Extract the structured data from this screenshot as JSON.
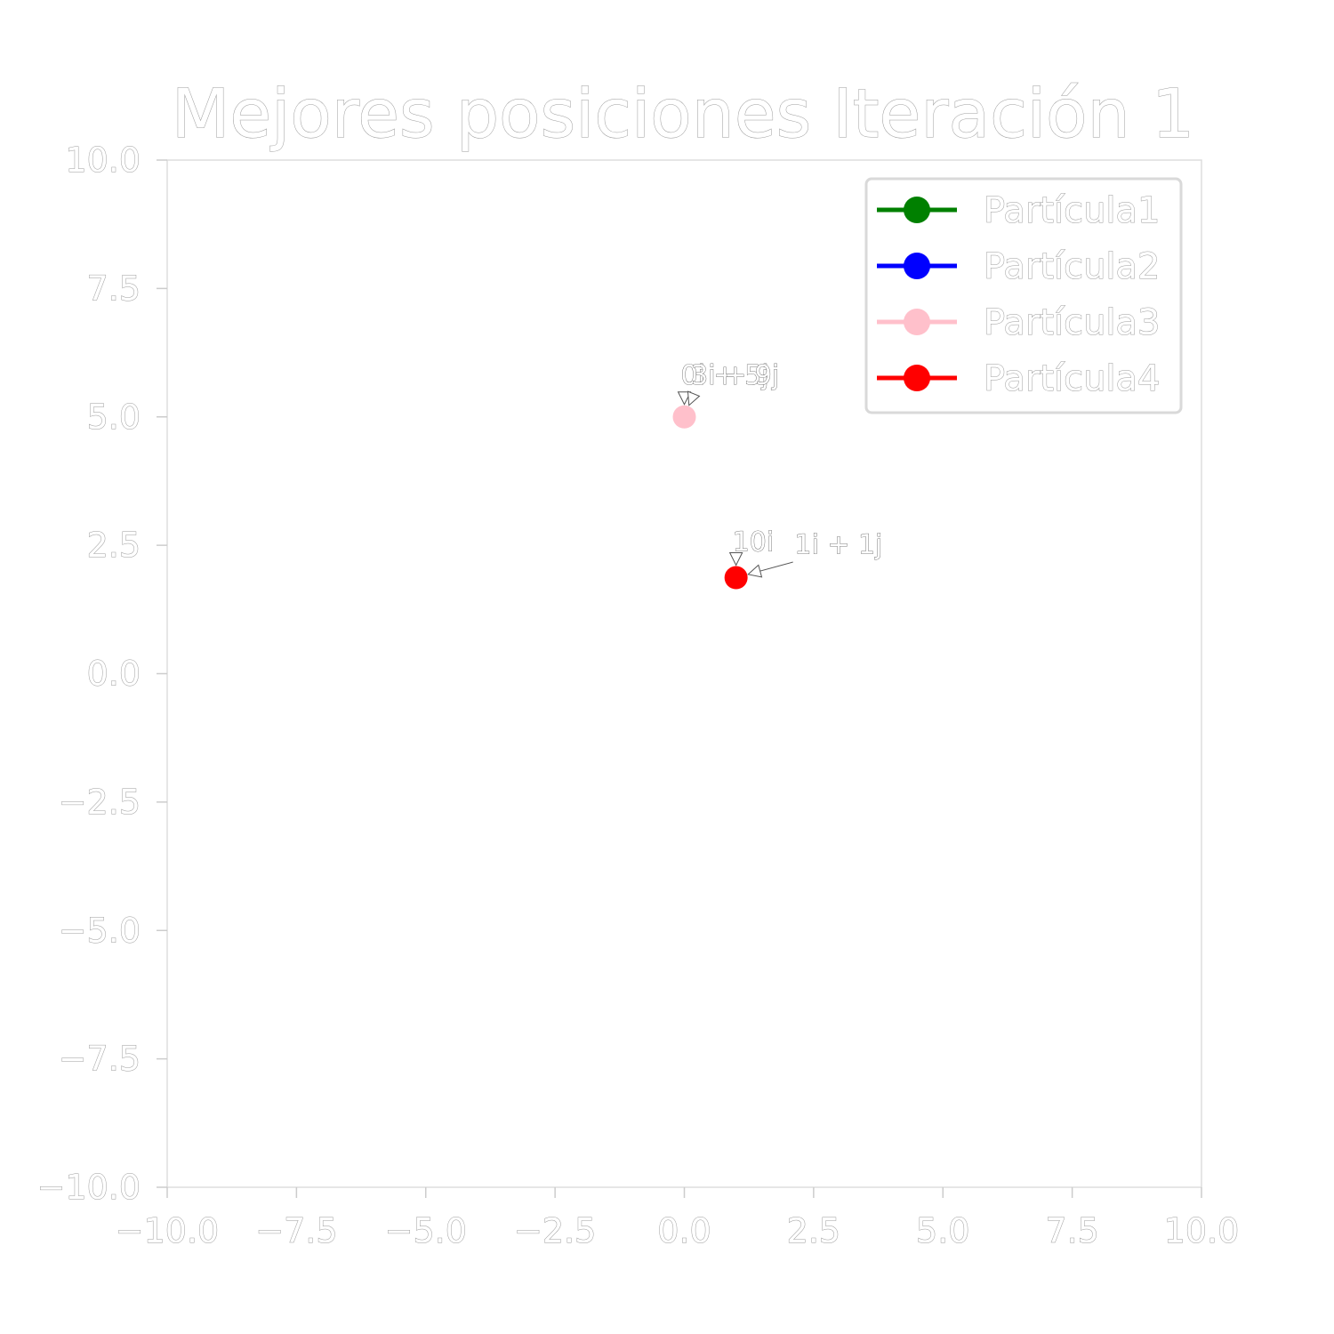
{
  "chart_data": {
    "type": "scatter",
    "title": "Mejores posiciones Iteración 1",
    "xlabel": "",
    "ylabel": "",
    "xlim": [
      -10,
      10
    ],
    "ylim": [
      -10,
      10
    ],
    "x_ticks": [
      -10.0,
      -7.5,
      -5.0,
      -2.5,
      0.0,
      2.5,
      5.0,
      7.5,
      10.0
    ],
    "y_ticks": [
      -10.0,
      -7.5,
      -5.0,
      -2.5,
      0.0,
      2.5,
      5.0,
      7.5,
      10.0
    ],
    "x_tick_labels": [
      "−10.0",
      "−7.5",
      "−5.0",
      "−2.5",
      "0.0",
      "2.5",
      "5.0",
      "7.5",
      "10.0"
    ],
    "y_tick_labels": [
      "−10.0",
      "−7.5",
      "−5.0",
      "−2.5",
      "0.0",
      "2.5",
      "5.0",
      "7.5",
      "10.0"
    ],
    "grid": false,
    "legend_position": "top-right",
    "series": [
      {
        "name": "Partícula1",
        "color": "#008000",
        "points": []
      },
      {
        "name": "Partícula2",
        "color": "#0000ff",
        "points": []
      },
      {
        "name": "Partícula3",
        "color": "#ffc0cb",
        "points": [
          {
            "x": 0.0,
            "y": 5.0
          }
        ]
      },
      {
        "name": "Partícula4",
        "color": "#ff0000",
        "points": [
          {
            "x": 1.0,
            "y": 1.87
          }
        ]
      }
    ],
    "annotations": [
      {
        "text": "0i + 5j",
        "x": 0.0,
        "y": 5.0,
        "text_x": 0.0,
        "text_y": 5.5
      },
      {
        "text": "3i + 9j",
        "x": 0.0,
        "y": 5.0,
        "text_x": 0.2,
        "text_y": 5.5
      },
      {
        "text": "1i + 1j",
        "x": 1.0,
        "y": 1.87,
        "text_x": 2.2,
        "text_y": 2.2
      },
      {
        "text": "10i",
        "x": 1.0,
        "y": 1.87,
        "text_x": 1.0,
        "text_y": 2.25
      }
    ]
  }
}
